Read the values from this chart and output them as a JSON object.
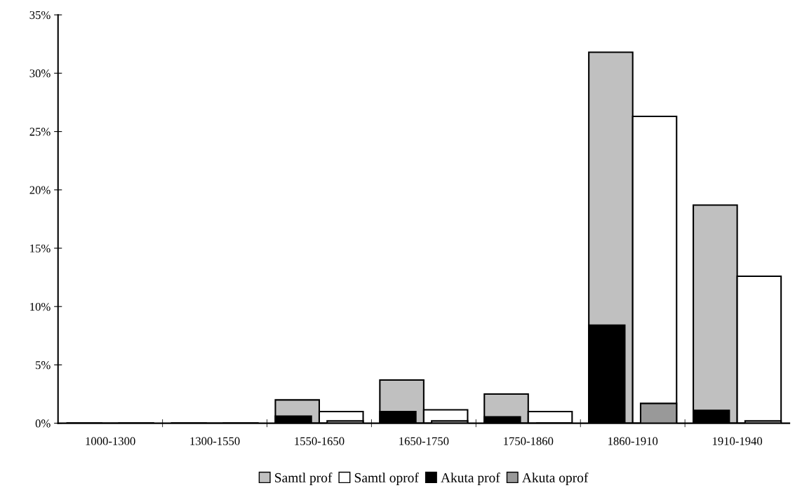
{
  "chart_data": {
    "type": "bar",
    "categories": [
      "1000-1300",
      "1300-1550",
      "1550-1650",
      "1650-1750",
      "1750-1860",
      "1860-1910",
      "1910-1940"
    ],
    "series": [
      {
        "name": "Samtl prof",
        "color": "#c0c0c0",
        "values": [
          0,
          0,
          2.0,
          3.7,
          2.5,
          31.8,
          18.7
        ]
      },
      {
        "name": "Samtl oprof",
        "color": "#ffffff",
        "values": [
          0,
          0,
          1.0,
          1.15,
          1.0,
          26.3,
          12.6
        ]
      },
      {
        "name": "Akuta prof",
        "color": "#000000",
        "values": [
          0,
          0,
          0.6,
          1.0,
          0.55,
          8.4,
          1.1
        ]
      },
      {
        "name": "Akuta oprof",
        "color": "#999999",
        "values": [
          0,
          0,
          0.2,
          0.2,
          0,
          1.7,
          0.2
        ]
      }
    ],
    "ylim": [
      0,
      35
    ],
    "yticks": [
      {
        "value": 0,
        "label": "0%"
      },
      {
        "value": 5,
        "label": "5%"
      },
      {
        "value": 10,
        "label": "10%"
      },
      {
        "value": 15,
        "label": "15%"
      },
      {
        "value": 20,
        "label": "20%"
      },
      {
        "value": 25,
        "label": "25%"
      },
      {
        "value": 30,
        "label": "30%"
      },
      {
        "value": 35,
        "label": "35%"
      }
    ],
    "grid": false,
    "legend": "bottom"
  }
}
